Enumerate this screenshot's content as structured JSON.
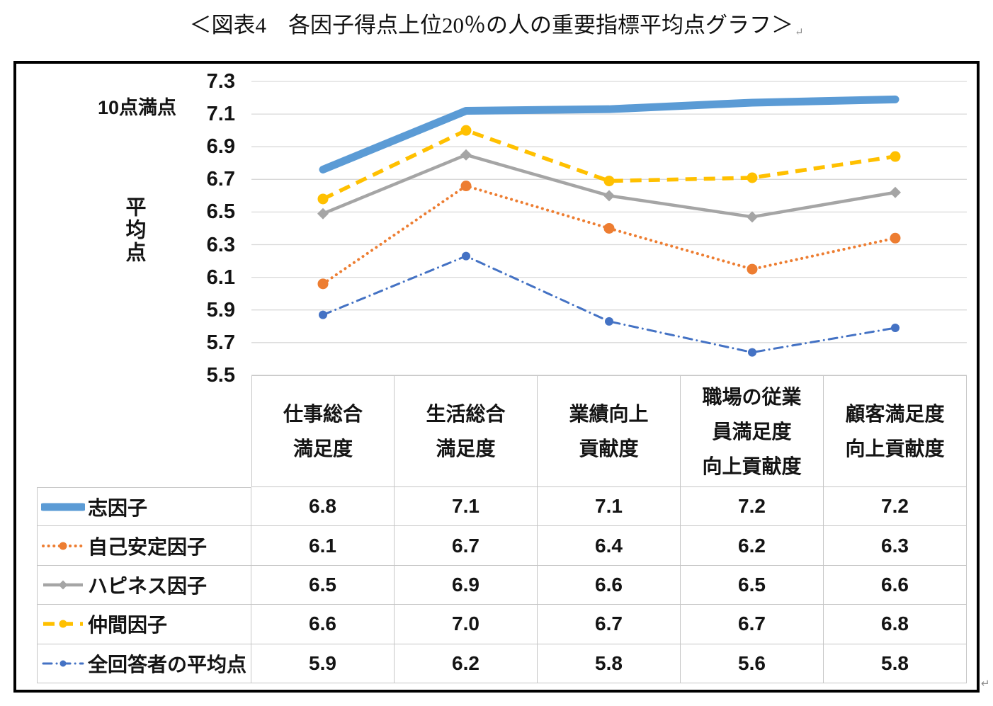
{
  "title": {
    "text": "＜図表4　各因子得点上位20％の人の重要指標平均点グラフ＞",
    "paragraph_mark": "↵"
  },
  "axis": {
    "scale_note": "10点満点",
    "y_title": "平均点"
  },
  "colors": {
    "outer_border": "#000000",
    "gridline": "#d9d9d9",
    "table_border": "#c6c6c6",
    "text": "#141414"
  },
  "chart_data": {
    "type": "line",
    "title": "＜図表4　各因子得点上位20％の人の重要指標平均点グラフ＞",
    "scale_note": "10点満点",
    "ylabel": "平均点",
    "ylim": [
      5.5,
      7.3
    ],
    "ytick_step": 0.2,
    "yticks": [
      "7.3",
      "7.1",
      "6.9",
      "6.7",
      "6.5",
      "6.3",
      "6.1",
      "5.9",
      "5.7",
      "5.5"
    ],
    "grid": "horizontal",
    "legend_position": "data-table-left",
    "categories": [
      "仕事総合満足度",
      "生活総合満足度",
      "業績向上貢献度",
      "職場の従業員満足度向上貢献度",
      "顧客満足度向上貢献度"
    ],
    "category_lines": [
      [
        "仕事総合",
        "満足度"
      ],
      [
        "生活総合",
        "満足度"
      ],
      [
        "業績向上",
        "貢献度"
      ],
      [
        "職場の従業",
        "員満足度",
        "向上貢献度"
      ],
      [
        "顧客満足度",
        "向上貢献度"
      ]
    ],
    "series": [
      {
        "name": "志因子",
        "color": "#5b9bd5",
        "style": "solid-thick",
        "marker": "none",
        "values": [
          6.76,
          7.12,
          7.13,
          7.17,
          7.19
        ],
        "table_values": [
          "6.8",
          "7.1",
          "7.1",
          "7.2",
          "7.2"
        ]
      },
      {
        "name": "自己安定因子",
        "color": "#ed7d31",
        "style": "dotted",
        "marker": "circle",
        "values": [
          6.06,
          6.66,
          6.4,
          6.15,
          6.34
        ],
        "table_values": [
          "6.1",
          "6.7",
          "6.4",
          "6.2",
          "6.3"
        ]
      },
      {
        "name": "ハピネス因子",
        "color": "#a5a5a5",
        "style": "solid",
        "marker": "diamond",
        "values": [
          6.49,
          6.85,
          6.6,
          6.47,
          6.62
        ],
        "table_values": [
          "6.5",
          "6.9",
          "6.6",
          "6.5",
          "6.6"
        ]
      },
      {
        "name": "仲間因子",
        "color": "#ffc000",
        "style": "dashed",
        "marker": "circle",
        "values": [
          6.58,
          7.0,
          6.69,
          6.71,
          6.84
        ],
        "table_values": [
          "6.6",
          "7.0",
          "6.7",
          "6.7",
          "6.8"
        ]
      },
      {
        "name": "全回答者の平均点",
        "color": "#4472c4",
        "style": "dash-dot",
        "marker": "circle-small",
        "values": [
          5.87,
          6.23,
          5.83,
          5.64,
          5.79
        ],
        "table_values": [
          "5.9",
          "6.2",
          "5.8",
          "5.6",
          "5.8"
        ]
      }
    ]
  }
}
